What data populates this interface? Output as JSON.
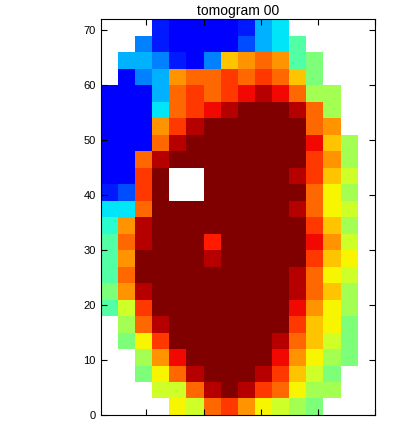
{
  "chart_data": {
    "type": "heatmap",
    "title": "tomogram 00",
    "x_edges": [
      -8,
      -5,
      -2,
      1,
      4,
      7,
      10,
      13,
      16,
      19,
      22,
      25,
      28,
      31,
      34,
      37,
      40
    ],
    "y_edges": [
      0,
      3,
      6,
      9,
      12,
      15,
      18,
      21,
      24,
      27,
      30,
      33,
      36,
      39,
      42,
      45,
      48,
      51,
      54,
      57,
      60,
      63,
      66,
      69,
      72
    ],
    "cells": [
      [
        null,
        null,
        null,
        null,
        0.65,
        0.6,
        0.8,
        0.85,
        0.75,
        0.65,
        0.6,
        0.55,
        0.5,
        null,
        null,
        null
      ],
      [
        null,
        null,
        null,
        0.6,
        0.6,
        0.8,
        0.95,
        1.0,
        0.95,
        0.85,
        0.8,
        0.65,
        0.55,
        0.55,
        null,
        null
      ],
      [
        null,
        null,
        0.5,
        0.65,
        0.8,
        0.95,
        1.0,
        1.0,
        1.0,
        0.95,
        0.85,
        0.7,
        0.6,
        0.5,
        null,
        null
      ],
      [
        null,
        null,
        0.55,
        0.75,
        0.9,
        1.0,
        1.0,
        1.0,
        1.0,
        1.0,
        0.9,
        0.75,
        0.65,
        0.55,
        0.5,
        null
      ],
      [
        null,
        0.5,
        0.65,
        0.85,
        1.0,
        1.0,
        1.0,
        1.0,
        1.0,
        1.0,
        0.95,
        0.8,
        0.7,
        0.6,
        0.5,
        null
      ],
      [
        null,
        0.55,
        0.8,
        0.95,
        1.0,
        1.0,
        1.0,
        1.0,
        1.0,
        1.0,
        1.0,
        0.85,
        0.7,
        0.65,
        0.5,
        null
      ],
      [
        0.45,
        0.6,
        0.85,
        1.0,
        1.0,
        1.0,
        1.0,
        1.0,
        1.0,
        1.0,
        1.0,
        0.9,
        0.75,
        0.65,
        0.55,
        null
      ],
      [
        0.5,
        0.75,
        0.95,
        1.0,
        1.0,
        1.0,
        1.0,
        1.0,
        1.0,
        1.0,
        1.0,
        0.95,
        0.8,
        0.7,
        0.55,
        null
      ],
      [
        0.45,
        0.8,
        1.0,
        1.0,
        1.0,
        1.0,
        1.0,
        1.0,
        1.0,
        1.0,
        1.0,
        0.95,
        0.8,
        0.65,
        0.6,
        null
      ],
      [
        0.45,
        0.75,
        1.0,
        1.0,
        1.0,
        1.0,
        0.95,
        1.0,
        1.0,
        1.0,
        1.0,
        1.0,
        0.85,
        0.7,
        0.65,
        null
      ],
      [
        0.45,
        0.8,
        0.95,
        1.0,
        1.0,
        1.0,
        0.88,
        1.0,
        1.0,
        1.0,
        1.0,
        1.0,
        0.9,
        0.75,
        0.6,
        null
      ],
      [
        0.4,
        0.75,
        0.95,
        1.0,
        1.0,
        1.0,
        1.0,
        1.0,
        1.0,
        1.0,
        1.0,
        1.0,
        0.85,
        0.7,
        0.55,
        null
      ],
      [
        0.35,
        0.35,
        0.8,
        1.0,
        1.0,
        1.0,
        1.0,
        1.0,
        1.0,
        1.0,
        1.0,
        0.95,
        0.8,
        0.65,
        0.6,
        null
      ],
      [
        0.15,
        0.2,
        0.85,
        1.0,
        null,
        null,
        1.0,
        1.0,
        1.0,
        1.0,
        1.0,
        1.0,
        0.8,
        0.65,
        0.55,
        null
      ],
      [
        0.12,
        0.12,
        0.85,
        1.0,
        null,
        null,
        1.0,
        1.0,
        1.0,
        1.0,
        1.0,
        0.95,
        0.85,
        0.7,
        0.6,
        null
      ],
      [
        0.12,
        0.12,
        0.8,
        0.95,
        1.0,
        1.0,
        1.0,
        1.0,
        1.0,
        1.0,
        1.0,
        1.0,
        0.85,
        0.75,
        0.55,
        null
      ],
      [
        0.12,
        0.12,
        0.12,
        0.8,
        0.95,
        1.0,
        1.0,
        1.0,
        1.0,
        1.0,
        1.0,
        1.0,
        0.9,
        0.7,
        0.55,
        null
      ],
      [
        0.12,
        0.12,
        0.12,
        0.75,
        0.85,
        0.95,
        1.0,
        1.0,
        1.0,
        1.0,
        1.0,
        1.0,
        0.8,
        0.75,
        null,
        null
      ],
      [
        0.12,
        0.12,
        0.12,
        0.35,
        0.8,
        0.85,
        0.9,
        0.95,
        1.0,
        1.0,
        1.0,
        0.95,
        0.8,
        0.55,
        null,
        null
      ],
      [
        0.12,
        0.12,
        0.12,
        0.3,
        0.8,
        0.85,
        0.8,
        0.85,
        0.9,
        0.95,
        0.9,
        0.8,
        0.55,
        0.55,
        null,
        null
      ],
      [
        null,
        0.12,
        0.25,
        0.3,
        0.75,
        0.8,
        0.8,
        0.85,
        0.8,
        0.85,
        0.8,
        0.7,
        0.5,
        null,
        null,
        null
      ],
      [
        null,
        0.3,
        0.3,
        0.25,
        0.15,
        0.12,
        0.25,
        0.7,
        0.75,
        0.8,
        0.75,
        0.45,
        0.5,
        null,
        null,
        null
      ],
      [
        null,
        null,
        0.25,
        0.15,
        0.12,
        0.12,
        0.12,
        0.12,
        0.2,
        0.3,
        0.35,
        0.45,
        null,
        null,
        null,
        null
      ],
      [
        null,
        null,
        null,
        0.15,
        0.12,
        0.12,
        0.12,
        0.12,
        0.15,
        0.3,
        0.35,
        null,
        null,
        null,
        null,
        null
      ]
    ],
    "color_range": [
      0,
      1
    ],
    "xlim": [
      -8,
      40
    ],
    "xticks": [
      0,
      10,
      20,
      30,
      40
    ],
    "ylim": [
      0,
      72
    ],
    "yticks": [
      0,
      10,
      20,
      30,
      40,
      50,
      60,
      70
    ],
    "tick_labels": "y",
    "grid": false
  }
}
